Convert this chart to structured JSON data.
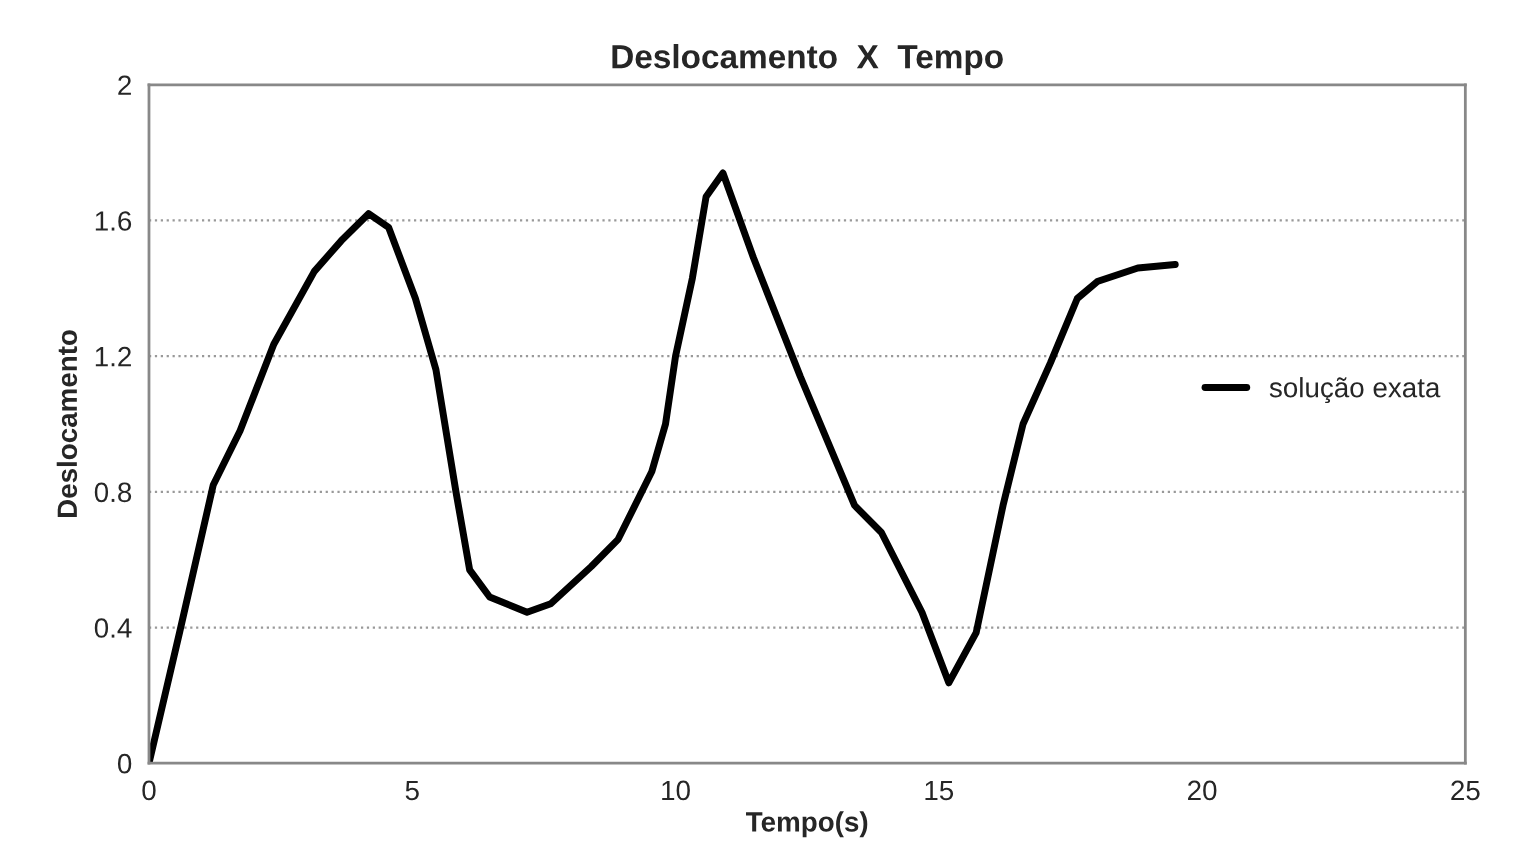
{
  "chart_data": {
    "type": "line",
    "title": "Deslocamento  X  Tempo",
    "xlabel": "Tempo(s)",
    "ylabel": "Deslocamento",
    "xlim": [
      0,
      25
    ],
    "xticks": [
      0,
      5,
      10,
      15,
      20,
      25
    ],
    "ylim": [
      0,
      2
    ],
    "yticks": [
      0,
      0.4,
      0.8,
      1.2,
      1.6,
      2
    ],
    "grid": "y",
    "legend": "right",
    "line_style": "solid",
    "marker": "none",
    "series": [
      {
        "name": "solução exata",
        "color": "#000000",
        "x": [
          0,
          0.58,
          1.22,
          1.73,
          2.37,
          3.14,
          3.65,
          4.17,
          4.55,
          5.06,
          5.45,
          5.83,
          6.09,
          6.47,
          7.18,
          7.63,
          8.4,
          8.91,
          9.55,
          9.81,
          10.0,
          10.32,
          10.58,
          10.9,
          11.48,
          12.37,
          13.4,
          13.91,
          14.68,
          15.19,
          15.71,
          16.22,
          16.6,
          17.12,
          17.63,
          18.01,
          18.78,
          19.49
        ],
        "values": [
          0,
          0.385,
          0.82,
          0.98,
          1.235,
          1.45,
          1.54,
          1.62,
          1.58,
          1.37,
          1.16,
          0.8,
          0.57,
          0.49,
          0.445,
          0.47,
          0.58,
          0.66,
          0.86,
          1.0,
          1.2,
          1.43,
          1.67,
          1.74,
          1.49,
          1.14,
          0.76,
          0.68,
          0.445,
          0.237,
          0.385,
          0.76,
          1.0,
          1.18,
          1.37,
          1.42,
          1.46,
          1.47
        ]
      }
    ]
  }
}
